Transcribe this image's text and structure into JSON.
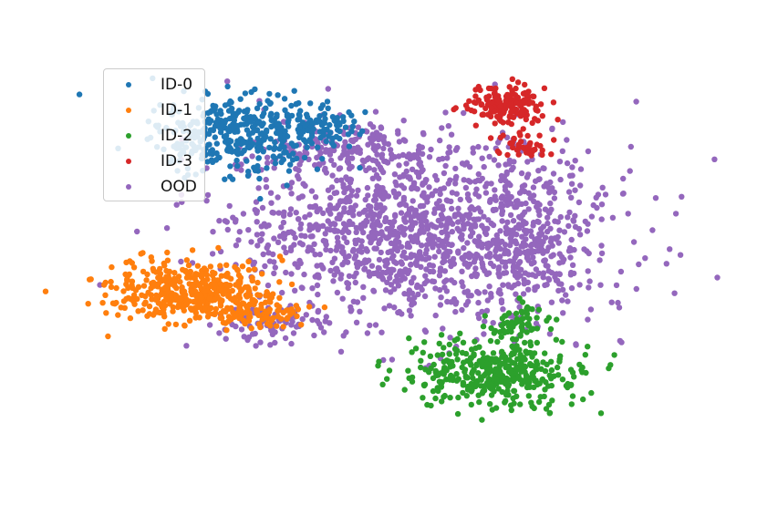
{
  "chart_data": {
    "type": "scatter",
    "title": "",
    "xlabel": "",
    "ylabel": "",
    "axes_visible": false,
    "grid": false,
    "legend_placement": "upper-left",
    "xlim": [
      -100,
      100
    ],
    "ylim": [
      -75,
      75
    ],
    "series": [
      {
        "name": "ID-0",
        "color": "#1f77b4",
        "clusters": [
          {
            "cx": -55,
            "cy": 48,
            "spread_x": 16,
            "spread_y": 8,
            "n": 380
          },
          {
            "cx": -28,
            "cy": 51,
            "spread_x": 10,
            "spread_y": 4,
            "n": 90
          }
        ]
      },
      {
        "name": "ID-1",
        "color": "#ff7f0e",
        "clusters": [
          {
            "cx": -72,
            "cy": -17,
            "spread_x": 15,
            "spread_y": 6,
            "n": 420
          },
          {
            "cx": -47,
            "cy": -26,
            "spread_x": 8,
            "spread_y": 3,
            "n": 80
          }
        ]
      },
      {
        "name": "ID-2",
        "color": "#2ca02c",
        "clusters": [
          {
            "cx": 40,
            "cy": -50,
            "spread_x": 16,
            "spread_y": 7,
            "n": 400
          },
          {
            "cx": 49,
            "cy": -30,
            "spread_x": 5,
            "spread_y": 4,
            "n": 60
          }
        ]
      },
      {
        "name": "ID-3",
        "color": "#d62728",
        "clusters": [
          {
            "cx": 42,
            "cy": 60,
            "spread_x": 7,
            "spread_y": 4,
            "n": 160
          },
          {
            "cx": 50,
            "cy": 42,
            "spread_x": 6,
            "spread_y": 3,
            "n": 40
          }
        ]
      },
      {
        "name": "OOD",
        "color": "#9467bd",
        "clusters": [
          {
            "cx": 10,
            "cy": 8,
            "spread_x": 35,
            "spread_y": 20,
            "n": 1300
          },
          {
            "cx": -15,
            "cy": 42,
            "spread_x": 15,
            "spread_y": 5,
            "n": 120
          },
          {
            "cx": -40,
            "cy": -30,
            "spread_x": 10,
            "spread_y": 4,
            "n": 80
          },
          {
            "cx": 52,
            "cy": 10,
            "spread_x": 8,
            "spread_y": 18,
            "n": 200
          }
        ]
      }
    ]
  }
}
